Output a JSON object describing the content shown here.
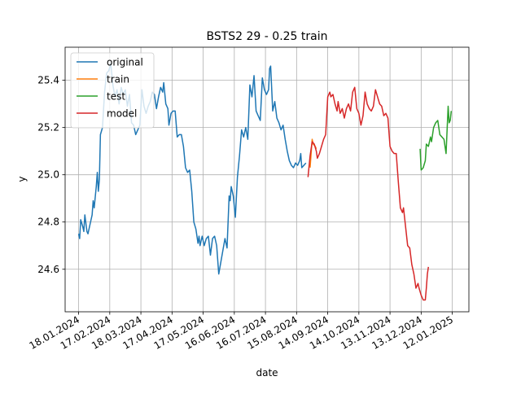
{
  "chart_data": {
    "type": "line",
    "title": "BSTS2 29 - 0.25 train",
    "xlabel": "date",
    "ylabel": "y",
    "grid": true,
    "legend_position": "top-left",
    "x_range": [
      "2024-01-05",
      "2025-01-28"
    ],
    "ylim": [
      24.42,
      25.54
    ],
    "x_ticks": [
      {
        "date": "2024-01-18",
        "label": "18.01.2024"
      },
      {
        "date": "2024-02-17",
        "label": "17.02.2024"
      },
      {
        "date": "2024-03-18",
        "label": "18.03.2024"
      },
      {
        "date": "2024-04-17",
        "label": "17.04.2024"
      },
      {
        "date": "2024-05-17",
        "label": "17.05.2024"
      },
      {
        "date": "2024-06-16",
        "label": "16.06.2024"
      },
      {
        "date": "2024-07-16",
        "label": "16.07.2024"
      },
      {
        "date": "2024-08-15",
        "label": "15.08.2024"
      },
      {
        "date": "2024-09-14",
        "label": "14.09.2024"
      },
      {
        "date": "2024-10-14",
        "label": "14.10.2024"
      },
      {
        "date": "2024-11-13",
        "label": "13.11.2024"
      },
      {
        "date": "2024-12-13",
        "label": "13.12.2024"
      },
      {
        "date": "2025-01-12",
        "label": "12.01.2025"
      }
    ],
    "y_ticks": [
      {
        "value": 24.6,
        "label": "24.6"
      },
      {
        "value": 24.8,
        "label": "24.8"
      },
      {
        "value": 25.0,
        "label": "25.0"
      },
      {
        "value": 25.2,
        "label": "25.2"
      },
      {
        "value": 25.4,
        "label": "25.4"
      }
    ],
    "series": [
      {
        "name": "original",
        "color": "#1f77b4",
        "points": [
          [
            "2024-01-18",
            24.75
          ],
          [
            "2024-01-19",
            24.73
          ],
          [
            "2024-01-20",
            24.81
          ],
          [
            "2024-01-22",
            24.78
          ],
          [
            "2024-01-23",
            24.76
          ],
          [
            "2024-01-24",
            24.83
          ],
          [
            "2024-01-26",
            24.76
          ],
          [
            "2024-01-27",
            24.75
          ],
          [
            "2024-01-29",
            24.79
          ],
          [
            "2024-01-31",
            24.83
          ],
          [
            "2024-02-01",
            24.89
          ],
          [
            "2024-02-02",
            24.86
          ],
          [
            "2024-02-04",
            24.95
          ],
          [
            "2024-02-05",
            25.01
          ],
          [
            "2024-02-06",
            24.93
          ],
          [
            "2024-02-07",
            24.98
          ],
          [
            "2024-02-08",
            25.17
          ],
          [
            "2024-02-10",
            25.2
          ],
          [
            "2024-02-12",
            25.35
          ],
          [
            "2024-02-14",
            25.43
          ],
          [
            "2024-02-16",
            25.44
          ],
          [
            "2024-02-18",
            25.47
          ],
          [
            "2024-02-20",
            25.38
          ],
          [
            "2024-02-22",
            25.33
          ],
          [
            "2024-02-24",
            25.36
          ],
          [
            "2024-02-26",
            25.3
          ],
          [
            "2024-02-28",
            25.37
          ],
          [
            "2024-03-01",
            25.34
          ],
          [
            "2024-03-03",
            25.36
          ],
          [
            "2024-03-05",
            25.29
          ],
          [
            "2024-03-07",
            25.34
          ],
          [
            "2024-03-09",
            25.22
          ],
          [
            "2024-03-11",
            25.21
          ],
          [
            "2024-03-13",
            25.17
          ],
          [
            "2024-03-15",
            25.19
          ],
          [
            "2024-03-17",
            25.21
          ],
          [
            "2024-03-19",
            25.36
          ],
          [
            "2024-03-21",
            25.29
          ],
          [
            "2024-03-23",
            25.26
          ],
          [
            "2024-03-25",
            25.29
          ],
          [
            "2024-03-27",
            25.31
          ],
          [
            "2024-03-29",
            25.35
          ],
          [
            "2024-03-31",
            25.34
          ],
          [
            "2024-04-02",
            25.28
          ],
          [
            "2024-04-04",
            25.33
          ],
          [
            "2024-04-06",
            25.37
          ],
          [
            "2024-04-08",
            25.35
          ],
          [
            "2024-04-09",
            25.39
          ],
          [
            "2024-04-11",
            25.3
          ],
          [
            "2024-04-13",
            25.28
          ],
          [
            "2024-04-14",
            25.21
          ],
          [
            "2024-04-16",
            25.26
          ],
          [
            "2024-04-18",
            25.27
          ],
          [
            "2024-04-20",
            25.27
          ],
          [
            "2024-04-22",
            25.16
          ],
          [
            "2024-04-24",
            25.17
          ],
          [
            "2024-04-26",
            25.17
          ],
          [
            "2024-04-28",
            25.12
          ],
          [
            "2024-04-30",
            25.03
          ],
          [
            "2024-05-02",
            25.01
          ],
          [
            "2024-05-04",
            25.02
          ],
          [
            "2024-05-06",
            24.93
          ],
          [
            "2024-05-08",
            24.8
          ],
          [
            "2024-05-10",
            24.77
          ],
          [
            "2024-05-12",
            24.71
          ],
          [
            "2024-05-13",
            24.74
          ],
          [
            "2024-05-14",
            24.7
          ],
          [
            "2024-05-16",
            24.74
          ],
          [
            "2024-05-18",
            24.7
          ],
          [
            "2024-05-20",
            24.73
          ],
          [
            "2024-05-22",
            24.74
          ],
          [
            "2024-05-24",
            24.66
          ],
          [
            "2024-05-26",
            24.73
          ],
          [
            "2024-05-28",
            24.74
          ],
          [
            "2024-05-30",
            24.7
          ],
          [
            "2024-06-01",
            24.58
          ],
          [
            "2024-06-03",
            24.63
          ],
          [
            "2024-06-05",
            24.68
          ],
          [
            "2024-06-07",
            24.73
          ],
          [
            "2024-06-09",
            24.69
          ],
          [
            "2024-06-11",
            24.91
          ],
          [
            "2024-06-12",
            24.89
          ],
          [
            "2024-06-13",
            24.95
          ],
          [
            "2024-06-15",
            24.91
          ],
          [
            "2024-06-17",
            24.82
          ],
          [
            "2024-06-19",
            24.99
          ],
          [
            "2024-06-21",
            25.08
          ],
          [
            "2024-06-23",
            25.19
          ],
          [
            "2024-06-25",
            25.16
          ],
          [
            "2024-06-27",
            25.2
          ],
          [
            "2024-06-29",
            25.15
          ],
          [
            "2024-07-01",
            25.38
          ],
          [
            "2024-07-03",
            25.33
          ],
          [
            "2024-07-05",
            25.42
          ],
          [
            "2024-07-07",
            25.27
          ],
          [
            "2024-07-09",
            25.25
          ],
          [
            "2024-07-11",
            25.23
          ],
          [
            "2024-07-13",
            25.41
          ],
          [
            "2024-07-15",
            25.36
          ],
          [
            "2024-07-17",
            25.34
          ],
          [
            "2024-07-19",
            25.36
          ],
          [
            "2024-07-20",
            25.45
          ],
          [
            "2024-07-21",
            25.46
          ],
          [
            "2024-07-23",
            25.27
          ],
          [
            "2024-07-25",
            25.31
          ],
          [
            "2024-07-27",
            25.24
          ],
          [
            "2024-07-29",
            25.22
          ],
          [
            "2024-07-31",
            25.19
          ],
          [
            "2024-08-02",
            25.21
          ],
          [
            "2024-08-04",
            25.15
          ],
          [
            "2024-08-06",
            25.1
          ],
          [
            "2024-08-08",
            25.06
          ],
          [
            "2024-08-10",
            25.04
          ],
          [
            "2024-08-12",
            25.03
          ],
          [
            "2024-08-14",
            25.05
          ],
          [
            "2024-08-16",
            25.04
          ],
          [
            "2024-08-18",
            25.06
          ],
          [
            "2024-08-19",
            25.09
          ],
          [
            "2024-08-20",
            25.03
          ],
          [
            "2024-08-22",
            25.04
          ],
          [
            "2024-08-24",
            25.05
          ]
        ]
      },
      {
        "name": "train",
        "color": "#ff7f0e",
        "points": [
          [
            "2024-08-28",
            25.03
          ],
          [
            "2024-08-30",
            25.15
          ],
          [
            "2024-08-31",
            25.13
          ],
          [
            "2024-09-02",
            25.12
          ],
          [
            "2024-09-03",
            25.11
          ]
        ]
      },
      {
        "name": "test",
        "color": "#2ca02c",
        "points": [
          [
            "2024-12-12",
            25.11
          ],
          [
            "2024-12-13",
            25.02
          ],
          [
            "2024-12-15",
            25.03
          ],
          [
            "2024-12-17",
            25.06
          ],
          [
            "2024-12-18",
            25.13
          ],
          [
            "2024-12-20",
            25.12
          ],
          [
            "2024-12-22",
            25.16
          ],
          [
            "2024-12-23",
            25.14
          ],
          [
            "2024-12-25",
            25.2
          ],
          [
            "2024-12-27",
            25.22
          ],
          [
            "2024-12-29",
            25.23
          ],
          [
            "2024-12-31",
            25.17
          ],
          [
            "2025-01-02",
            25.16
          ],
          [
            "2025-01-04",
            25.15
          ],
          [
            "2025-01-06",
            25.09
          ],
          [
            "2025-01-08",
            25.29
          ],
          [
            "2025-01-09",
            25.22
          ],
          [
            "2025-01-10",
            25.23
          ],
          [
            "2025-01-11",
            25.27
          ]
        ]
      },
      {
        "name": "model",
        "color": "#d62728",
        "points": [
          [
            "2024-08-26",
            24.99
          ],
          [
            "2024-08-28",
            25.08
          ],
          [
            "2024-08-30",
            25.14
          ],
          [
            "2024-09-01",
            25.13
          ],
          [
            "2024-09-03",
            25.1
          ],
          [
            "2024-09-04",
            25.07
          ],
          [
            "2024-09-06",
            25.09
          ],
          [
            "2024-09-08",
            25.12
          ],
          [
            "2024-09-10",
            25.15
          ],
          [
            "2024-09-12",
            25.17
          ],
          [
            "2024-09-14",
            25.33
          ],
          [
            "2024-09-16",
            25.35
          ],
          [
            "2024-09-17",
            25.33
          ],
          [
            "2024-09-19",
            25.34
          ],
          [
            "2024-09-21",
            25.3
          ],
          [
            "2024-09-23",
            25.27
          ],
          [
            "2024-09-24",
            25.31
          ],
          [
            "2024-09-26",
            25.26
          ],
          [
            "2024-09-28",
            25.28
          ],
          [
            "2024-09-30",
            25.24
          ],
          [
            "2024-10-02",
            25.28
          ],
          [
            "2024-10-04",
            25.3
          ],
          [
            "2024-10-06",
            25.27
          ],
          [
            "2024-10-08",
            25.35
          ],
          [
            "2024-10-10",
            25.37
          ],
          [
            "2024-10-12",
            25.28
          ],
          [
            "2024-10-14",
            25.26
          ],
          [
            "2024-10-16",
            25.21
          ],
          [
            "2024-10-18",
            25.25
          ],
          [
            "2024-10-20",
            25.35
          ],
          [
            "2024-10-22",
            25.3
          ],
          [
            "2024-10-24",
            25.28
          ],
          [
            "2024-10-26",
            25.27
          ],
          [
            "2024-10-28",
            25.29
          ],
          [
            "2024-10-30",
            25.36
          ],
          [
            "2024-11-01",
            25.33
          ],
          [
            "2024-11-03",
            25.3
          ],
          [
            "2024-11-05",
            25.29
          ],
          [
            "2024-11-07",
            25.25
          ],
          [
            "2024-11-09",
            25.26
          ],
          [
            "2024-11-11",
            25.24
          ],
          [
            "2024-11-13",
            25.12
          ],
          [
            "2024-11-15",
            25.1
          ],
          [
            "2024-11-17",
            25.09
          ],
          [
            "2024-11-19",
            25.09
          ],
          [
            "2024-11-21",
            24.97
          ],
          [
            "2024-11-23",
            24.86
          ],
          [
            "2024-11-25",
            24.84
          ],
          [
            "2024-11-26",
            24.86
          ],
          [
            "2024-11-28",
            24.78
          ],
          [
            "2024-11-30",
            24.7
          ],
          [
            "2024-12-02",
            24.69
          ],
          [
            "2024-12-04",
            24.62
          ],
          [
            "2024-12-06",
            24.58
          ],
          [
            "2024-12-08",
            24.52
          ],
          [
            "2024-12-10",
            24.54
          ],
          [
            "2024-12-11",
            24.52
          ],
          [
            "2024-12-13",
            24.49
          ],
          [
            "2024-12-15",
            24.47
          ],
          [
            "2024-12-17",
            24.47
          ],
          [
            "2024-12-18",
            24.52
          ],
          [
            "2024-12-19",
            24.58
          ],
          [
            "2024-12-20",
            24.61
          ]
        ]
      }
    ]
  }
}
